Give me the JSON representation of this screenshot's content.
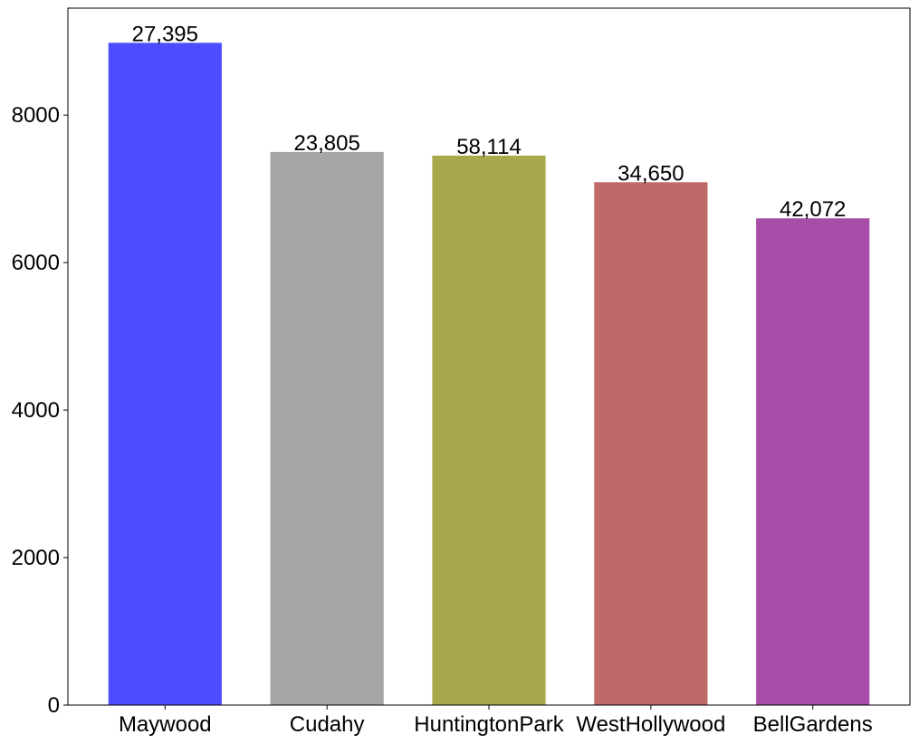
{
  "chart_data": {
    "type": "bar",
    "categories": [
      "Maywood",
      "Cudahy",
      "HuntingtonPark",
      "WestHollywood",
      "BellGardens"
    ],
    "values": [
      8980,
      7500,
      7450,
      7090,
      6600
    ],
    "data_labels": [
      "27,395",
      "23,805",
      "58,114",
      "34,650",
      "42,072"
    ],
    "colors": [
      "#4d4dff",
      "#a6a6a6",
      "#a8a84d",
      "#bf6a69",
      "#a64da8"
    ],
    "title": "",
    "xlabel": "",
    "ylabel": "",
    "ylim": [
      0,
      9450
    ],
    "yticks": [
      0,
      2000,
      4000,
      6000,
      8000
    ],
    "ytick_labels": [
      "0",
      "2000",
      "4000",
      "6000",
      "8000"
    ],
    "grid": false,
    "legend": "none"
  }
}
